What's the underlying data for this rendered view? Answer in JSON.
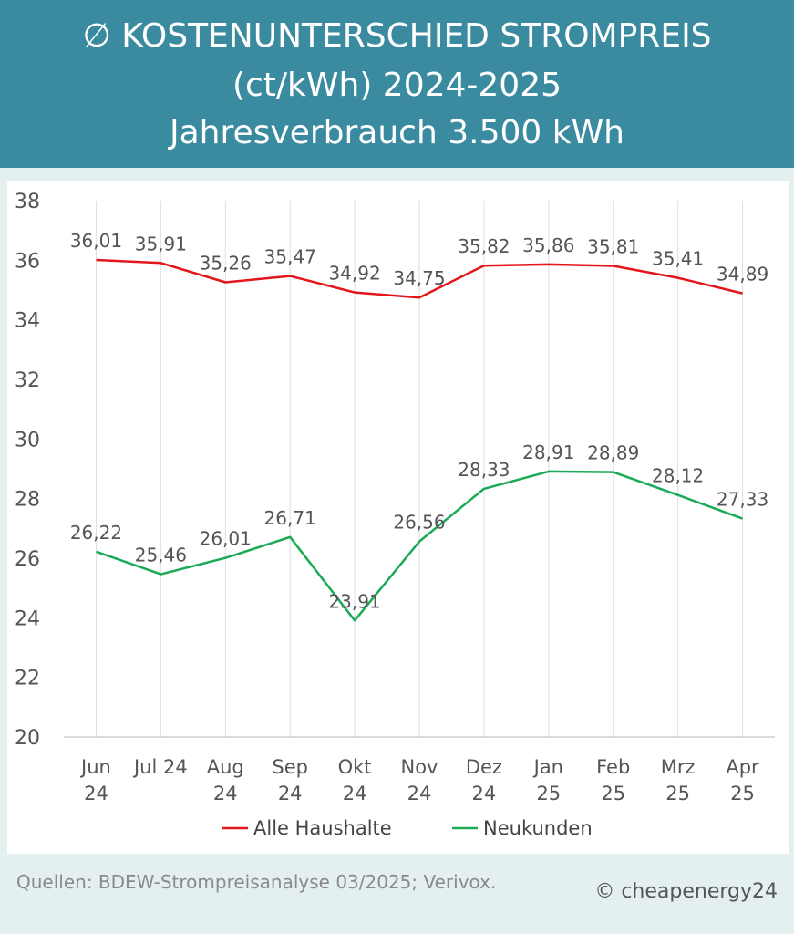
{
  "header": {
    "title_line1": "∅ KOSTENUNTERSCHIED STROMPREIS",
    "title_line2": "(ct/kWh) 2024-2025",
    "title_line3": "Jahresverbrauch 3.500 kWh"
  },
  "footer": {
    "source": "Quellen: BDEW-Strompreisanalyse 03/2025; Verivox.",
    "copyright": "© cheapenergy24"
  },
  "chart_data": {
    "type": "line",
    "categories": [
      [
        "Jun",
        "24"
      ],
      [
        "Jul 24"
      ],
      [
        "Aug",
        "24"
      ],
      [
        "Sep",
        "24"
      ],
      [
        "Okt",
        "24"
      ],
      [
        "Nov",
        "24"
      ],
      [
        "Dez",
        "24"
      ],
      [
        "Jan",
        "25"
      ],
      [
        "Feb",
        "25"
      ],
      [
        "Mrz",
        "25"
      ],
      [
        "Apr",
        "25"
      ]
    ],
    "series": [
      {
        "name": "Alle Haushalte",
        "color": "#e3161c",
        "values": [
          36.01,
          35.91,
          35.26,
          35.47,
          34.92,
          34.75,
          35.82,
          35.86,
          35.81,
          35.41,
          34.89
        ],
        "labels": [
          "36,01",
          "35,91",
          "35,26",
          "35,47",
          "34,92",
          "34,75",
          "35,82",
          "35,86",
          "35,81",
          "35,41",
          "34,89"
        ]
      },
      {
        "name": "Neukunden",
        "color": "#1aaa55",
        "values": [
          26.22,
          25.46,
          26.01,
          26.71,
          23.91,
          26.56,
          28.33,
          28.91,
          28.89,
          28.12,
          27.33
        ],
        "labels": [
          "26,22",
          "25,46",
          "26,01",
          "26,71",
          "23,91",
          "26,56",
          "28,33",
          "28,91",
          "28,89",
          "28,12",
          "27,33"
        ]
      }
    ],
    "ylim": [
      20,
      38
    ],
    "yticks": [
      "20",
      "22",
      "24",
      "26",
      "28",
      "30",
      "32",
      "34",
      "36",
      "38"
    ],
    "grid": true,
    "legend_position": "bottom"
  }
}
